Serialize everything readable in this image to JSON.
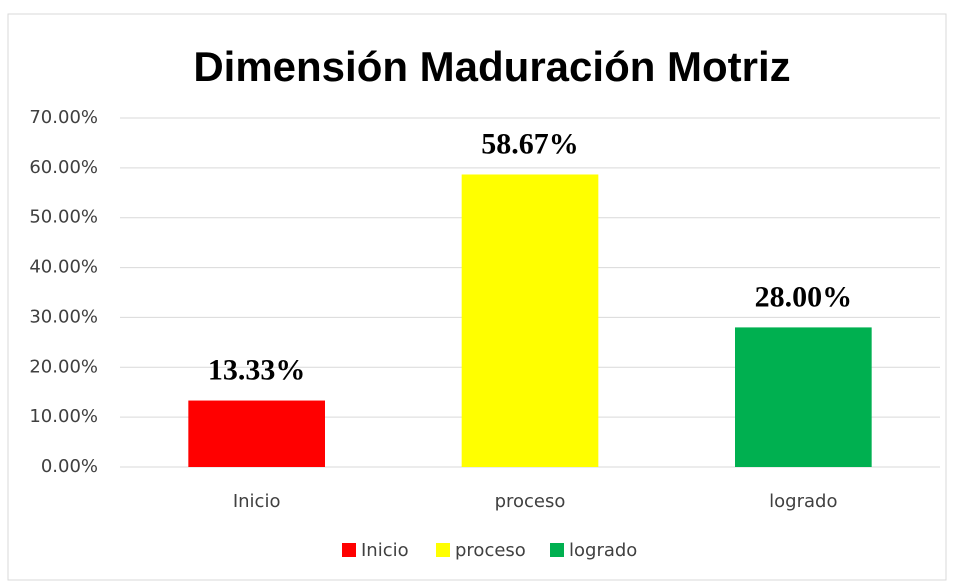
{
  "chart_data": {
    "type": "bar",
    "title": "Dimensión Maduración Motriz",
    "categories": [
      "Inicio",
      "proceso",
      "logrado"
    ],
    "values": [
      13.33,
      58.67,
      28.0
    ],
    "value_labels": [
      "13.33%",
      "58.67%",
      "28.00%"
    ],
    "colors": [
      "#ff0000",
      "#ffff00",
      "#00b050"
    ],
    "ylim": [
      0,
      70
    ],
    "yticks": [
      {
        "value": 0,
        "label": "0.00%"
      },
      {
        "value": 10,
        "label": "10.00%"
      },
      {
        "value": 20,
        "label": "20.00%"
      },
      {
        "value": 30,
        "label": "30.00%"
      },
      {
        "value": 40,
        "label": "40.00%"
      },
      {
        "value": 50,
        "label": "50.00%"
      },
      {
        "value": 60,
        "label": "60.00%"
      },
      {
        "value": 70,
        "label": "70.00%"
      }
    ],
    "grid": true,
    "legend": "bottom"
  }
}
